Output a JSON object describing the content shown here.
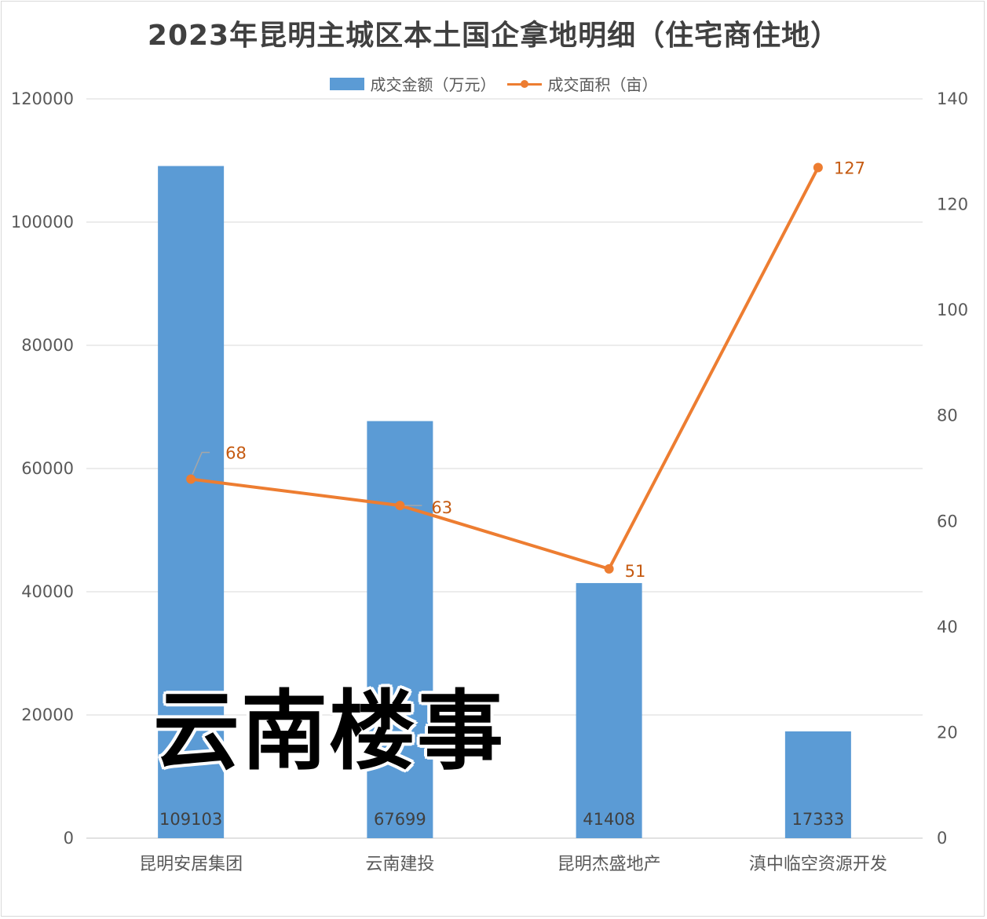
{
  "chart_data": {
    "type": "bar",
    "title": "2023年昆明主城区本土国企拿地明细（住宅商住地）",
    "categories": [
      "昆明安居集团",
      "云南建投",
      "昆明杰盛地产",
      "滇中临空资源开发"
    ],
    "series": [
      {
        "name": "成交金额（万元）",
        "type": "bar",
        "axis": "left",
        "color": "#5b9bd5",
        "values": [
          109103,
          67699,
          41408,
          17333
        ]
      },
      {
        "name": "成交面积（亩）",
        "type": "line",
        "axis": "right",
        "color": "#ed7d31",
        "values": [
          68,
          63,
          51,
          127
        ]
      }
    ],
    "ylim_left": [
      0,
      120000
    ],
    "ylim_right": [
      0,
      140
    ],
    "yticks_left": [
      "0",
      "20000",
      "40000",
      "60000",
      "80000",
      "100000",
      "120000"
    ],
    "yticks_right": [
      "0",
      "20",
      "40",
      "60",
      "80",
      "100",
      "120",
      "140"
    ],
    "grid": true,
    "legend_position": "top-center"
  },
  "watermark": "云南楼事"
}
